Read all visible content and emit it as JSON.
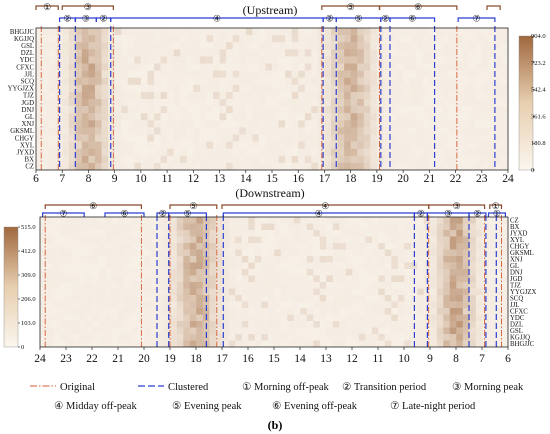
{
  "colors": {
    "heat_low": "#fbf6ee",
    "heat_high": "#a0683e",
    "original_line": "#d45a34",
    "clustered_line": "#2b3fd0",
    "axis": "#222222"
  },
  "chart_data": [
    {
      "type": "heatmap",
      "title": "(Upstream)",
      "stations": [
        "BHGJJC",
        "KGJJQ",
        "GSL",
        "DZL",
        "YDC",
        "CFXC",
        "JJL",
        "SCQ",
        "YYGJZX",
        "TJZ",
        "JGD",
        "DNJ",
        "GL",
        "XNJ",
        "GKSML",
        "CHGY",
        "XYL",
        "JYXD",
        "BX",
        "CZ"
      ],
      "hour_ticks": [
        "6",
        "7",
        "8",
        "9",
        "10",
        "11",
        "12",
        "13",
        "14",
        "15",
        "16",
        "17",
        "18",
        "19",
        "20",
        "21",
        "22",
        "23",
        "24"
      ],
      "xlim": [
        6,
        24
      ],
      "colorbar": {
        "min": 0,
        "max": 904.0,
        "ticks": [
          "0",
          "180.8",
          "361.6",
          "542.4",
          "723.2",
          "904.0"
        ]
      },
      "original_boundaries": [
        6.2,
        6.85,
        8.95,
        16.9,
        19.1,
        22.05
      ],
      "clustered_boundaries": [
        6.9,
        7.5,
        8.85,
        16.95,
        17.45,
        19.15,
        19.5,
        21.2,
        23.5
      ],
      "original_periods": [
        {
          "label": "①",
          "start": 6.0,
          "end": 6.85
        },
        {
          "label": "③",
          "start": 7.0,
          "end": 8.95
        },
        {
          "label": "⑤",
          "start": 16.9,
          "end": 19.1
        },
        {
          "label": "⑥",
          "start": 19.1,
          "end": 22.05
        },
        {
          "label": "",
          "start": 23.2,
          "end": 23.7
        }
      ],
      "clustered_periods": [
        {
          "label": "②",
          "start": 6.9,
          "end": 7.5
        },
        {
          "label": "③",
          "start": 7.5,
          "end": 8.3
        },
        {
          "label": "②",
          "start": 8.3,
          "end": 8.85
        },
        {
          "label": "④",
          "start": 8.85,
          "end": 16.95
        },
        {
          "label": "②",
          "start": 16.95,
          "end": 17.45
        },
        {
          "label": "⑤",
          "start": 17.45,
          "end": 19.15
        },
        {
          "label": "②",
          "start": 19.15,
          "end": 19.5
        },
        {
          "label": "⑥",
          "start": 19.5,
          "end": 21.2
        },
        {
          "label": "⑦",
          "start": 22.1,
          "end": 23.5
        }
      ],
      "peaks": [
        {
          "center": 8.0,
          "width": 0.6,
          "amp": 0.55
        },
        {
          "center": 18.0,
          "width": 0.7,
          "amp": 0.5
        }
      ]
    },
    {
      "type": "heatmap",
      "title": "(Downstream)",
      "stations": [
        "CZ",
        "BX",
        "JYXD",
        "XYL",
        "CHGY",
        "GKSML",
        "XNJ",
        "GL",
        "DNJ",
        "JGD",
        "TJZ",
        "YYGJZX",
        "SCQ",
        "JJL",
        "CFXC",
        "YDC",
        "DZL",
        "GSL",
        "KGJJQ",
        "BHGJJC"
      ],
      "hour_ticks": [
        "24",
        "23",
        "22",
        "21",
        "20",
        "19",
        "18",
        "17",
        "16",
        "15",
        "14",
        "13",
        "12",
        "11",
        "10",
        "9",
        "8",
        "7",
        "6"
      ],
      "xlim": [
        24,
        6
      ],
      "colorbar": {
        "min": 0,
        "max": 515.0,
        "ticks": [
          "0",
          "103.0",
          "206.0",
          "309.0",
          "412.0",
          "515.0"
        ]
      },
      "original_boundaries": [
        23.8,
        20.1,
        19.0,
        17.2,
        9.05,
        6.9,
        6.25
      ],
      "clustered_boundaries": [
        19.5,
        19.05,
        17.6,
        16.95,
        9.6,
        9.1,
        7.5,
        6.85,
        6.45
      ],
      "original_periods": [
        {
          "label": "⑥",
          "start": 23.8,
          "end": 20.1
        },
        {
          "label": "⑤",
          "start": 19.0,
          "end": 17.2
        },
        {
          "label": "④",
          "start": 17.0,
          "end": 9.05
        },
        {
          "label": "③",
          "start": 9.05,
          "end": 6.9
        },
        {
          "label": "①",
          "start": 6.7,
          "end": 6.25
        }
      ],
      "clustered_periods": [
        {
          "label": "⑦",
          "start": 23.9,
          "end": 22.3
        },
        {
          "label": "⑥",
          "start": 21.5,
          "end": 20.0
        },
        {
          "label": "②",
          "start": 19.5,
          "end": 19.05
        },
        {
          "label": "⑤",
          "start": 19.05,
          "end": 17.6
        },
        {
          "label": "④",
          "start": 16.95,
          "end": 9.6
        },
        {
          "label": "②",
          "start": 9.6,
          "end": 9.1
        },
        {
          "label": "③",
          "start": 9.1,
          "end": 7.5
        },
        {
          "label": "②",
          "start": 7.5,
          "end": 6.85
        },
        {
          "label": "①",
          "start": 6.75,
          "end": 6.1
        }
      ],
      "peaks": [
        {
          "center": 8.0,
          "width": 0.6,
          "amp": 0.62
        },
        {
          "center": 18.0,
          "width": 0.7,
          "amp": 0.55
        }
      ]
    }
  ],
  "legend": {
    "original": "Original",
    "clustered": "Clustered",
    "p1": "① Morning off-peak",
    "p2": "② Transition period",
    "p3": "③ Morning peak",
    "p4": "④ Midday off-peak",
    "p5": "⑤ Evening peak",
    "p6": "⑥ Evening off-peak",
    "p7": "⑦ Late-night period"
  },
  "figure_label": "(b)"
}
